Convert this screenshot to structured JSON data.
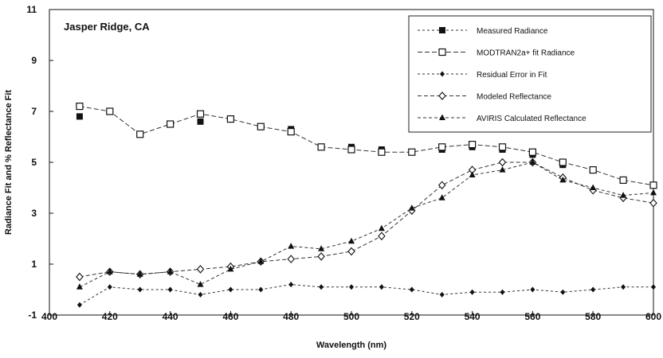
{
  "chart_data": {
    "type": "line",
    "title": "Jasper Ridge, CA",
    "xlabel": "Wavelength (nm)",
    "ylabel": "Radiance Fit and % Reflectance Fit",
    "xlim": [
      400,
      600
    ],
    "ylim": [
      -1,
      11
    ],
    "x_ticks": [
      400,
      420,
      440,
      460,
      480,
      500,
      520,
      540,
      560,
      580,
      600
    ],
    "x_tick_labels": [
      "400",
      "420",
      "440",
      "460",
      "480",
      "500",
      "520",
      "540",
      "560",
      "580",
      "600"
    ],
    "y_ticks": [
      -1,
      1,
      3,
      5,
      7,
      9,
      11
    ],
    "y_tick_labels": [
      "-1",
      "1",
      "3",
      "5",
      "7",
      "9",
      "11"
    ],
    "legend_position": "top-right",
    "series": [
      {
        "name": "Measured Radiance",
        "marker": "filled-square",
        "line": false,
        "x": [
          410,
          450,
          460,
          480,
          490,
          500,
          510,
          530,
          540,
          550,
          560,
          570,
          580,
          590,
          600
        ],
        "y": [
          6.8,
          6.6,
          6.7,
          6.3,
          5.6,
          5.6,
          5.5,
          5.5,
          5.6,
          5.5,
          5.3,
          4.9,
          4.7,
          4.3,
          4.1
        ]
      },
      {
        "name": "MODTRAN2a+ fit Radiance",
        "marker": "open-square",
        "line": true,
        "dash": "6,3",
        "x": [
          410,
          420,
          430,
          440,
          450,
          460,
          470,
          480,
          490,
          500,
          510,
          520,
          530,
          540,
          550,
          560,
          570,
          580,
          590,
          600
        ],
        "y": [
          7.2,
          7.0,
          6.1,
          6.5,
          6.9,
          6.7,
          6.4,
          6.2,
          5.6,
          5.5,
          5.4,
          5.4,
          5.6,
          5.7,
          5.6,
          5.4,
          5.0,
          4.7,
          4.3,
          4.1
        ]
      },
      {
        "name": "Residual Error in Fit",
        "marker": "filled-diamond",
        "line": true,
        "dash": "3,3",
        "x": [
          410,
          420,
          430,
          440,
          450,
          460,
          470,
          480,
          490,
          500,
          510,
          520,
          530,
          540,
          550,
          560,
          570,
          580,
          590,
          600
        ],
        "y": [
          -0.6,
          0.1,
          0.0,
          0.0,
          -0.2,
          0.0,
          0.0,
          0.2,
          0.1,
          0.1,
          0.1,
          0.0,
          -0.2,
          -0.1,
          -0.1,
          0.0,
          -0.1,
          0.0,
          0.1,
          0.1
        ]
      },
      {
        "name": "Modeled Reflectance",
        "marker": "open-diamond",
        "line": true,
        "dash": "5,3",
        "x": [
          410,
          420,
          430,
          440,
          450,
          460,
          470,
          480,
          490,
          500,
          510,
          520,
          530,
          540,
          550,
          560,
          570,
          580,
          590,
          600
        ],
        "y": [
          0.5,
          0.7,
          0.6,
          0.7,
          0.8,
          0.9,
          1.1,
          1.2,
          1.3,
          1.5,
          2.1,
          3.1,
          4.1,
          4.7,
          5.0,
          5.0,
          4.4,
          3.9,
          3.6,
          3.4
        ]
      },
      {
        "name": "AVIRIS Calculated Reflectance",
        "marker": "filled-triangle",
        "line": true,
        "dash": "4,3",
        "x": [
          410,
          420,
          430,
          440,
          450,
          460,
          470,
          480,
          490,
          500,
          510,
          520,
          530,
          540,
          550,
          560,
          570,
          580,
          590,
          600
        ],
        "y": [
          0.1,
          0.7,
          0.6,
          0.7,
          0.2,
          0.8,
          1.1,
          1.7,
          1.6,
          1.9,
          2.4,
          3.2,
          3.6,
          4.5,
          4.7,
          5.0,
          4.3,
          4.0,
          3.7,
          3.8
        ]
      }
    ]
  }
}
